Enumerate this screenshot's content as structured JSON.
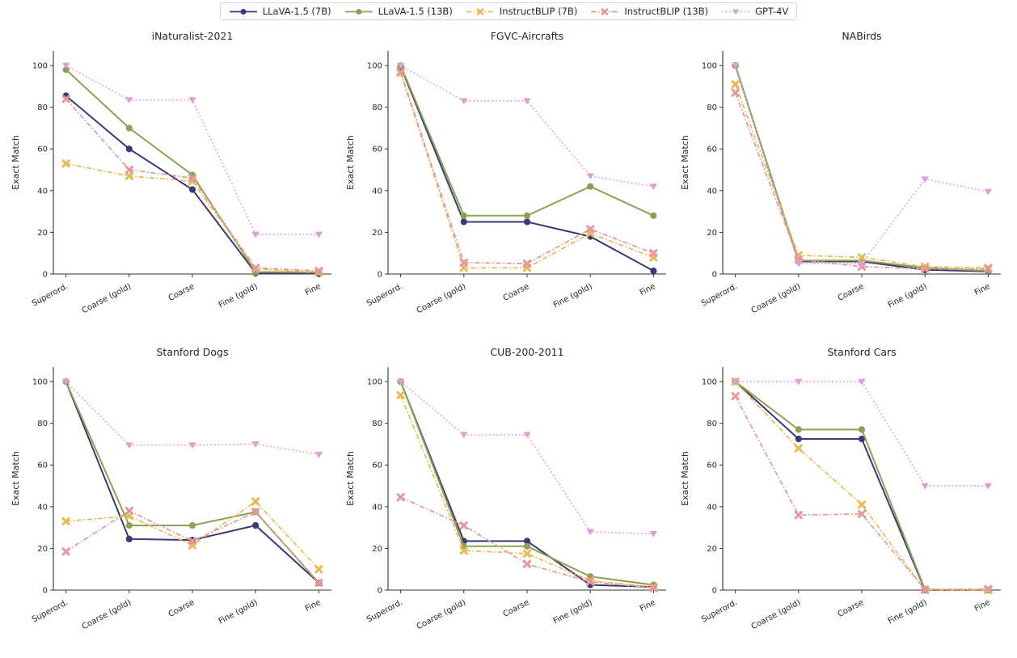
{
  "figure": {
    "ylabel": "Exact Match",
    "yticks": [
      0,
      20,
      40,
      60,
      80,
      100
    ],
    "ylim": [
      0,
      107
    ],
    "categories": [
      "Superord.",
      "Coarse (gold)",
      "Coarse",
      "Fine (gold)",
      "Fine"
    ]
  },
  "legend": {
    "entries": [
      {
        "label": "LLaVA-1.5 (7B)",
        "color": "#393b79",
        "linestyle": "solid",
        "marker": "circle"
      },
      {
        "label": "LLaVA-1.5 (13B)",
        "color": "#8ca252",
        "linestyle": "solid",
        "marker": "circle"
      },
      {
        "label": "InstructBLIP (7B)",
        "color": "#e7ba52",
        "linestyle": "dashdot",
        "marker": "x"
      },
      {
        "label": "InstructBLIP (13B)",
        "color": "#e7969c",
        "linestyle": "dashdot",
        "marker": "x"
      },
      {
        "label": "GPT-4V",
        "color": "#de9ed6",
        "linestyle": "dotted",
        "marker": "triangle-down"
      }
    ]
  },
  "chart_data": [
    {
      "type": "line",
      "title": "iNaturalist-2021",
      "xlabel": "",
      "ylabel": "Exact Match",
      "ylim": [
        0,
        107
      ],
      "grid": false,
      "categories": [
        "Superord.",
        "Coarse (gold)",
        "Coarse",
        "Fine (gold)",
        "Fine"
      ],
      "series": [
        {
          "name": "LLaVA-1.5 (7B)",
          "values": [
            85.5,
            60,
            40.5,
            0.6,
            0.2
          ]
        },
        {
          "name": "LLaVA-1.5 (13B)",
          "values": [
            98,
            70,
            47.5,
            1,
            0.8
          ]
        },
        {
          "name": "InstructBLIP (7B)",
          "values": [
            53,
            47,
            44.5,
            2.5,
            0.8
          ]
        },
        {
          "name": "InstructBLIP (13B)",
          "values": [
            84,
            50,
            46,
            3,
            1.5
          ]
        },
        {
          "name": "GPT-4V",
          "values": [
            100,
            83.5,
            83.5,
            19,
            19
          ]
        }
      ]
    },
    {
      "type": "line",
      "title": "FGVC-Aircrafts",
      "xlabel": "",
      "ylabel": "Exact Match",
      "ylim": [
        0,
        107
      ],
      "grid": false,
      "categories": [
        "Superord.",
        "Coarse (gold)",
        "Coarse",
        "Fine (gold)",
        "Fine"
      ],
      "series": [
        {
          "name": "LLaVA-1.5 (7B)",
          "values": [
            99.5,
            25,
            25,
            18,
            1.5
          ]
        },
        {
          "name": "LLaVA-1.5 (13B)",
          "values": [
            100,
            28,
            28,
            42,
            28
          ]
        },
        {
          "name": "InstructBLIP (7B)",
          "values": [
            96.5,
            3,
            3,
            19.5,
            8
          ]
        },
        {
          "name": "InstructBLIP (13B)",
          "values": [
            97,
            5.5,
            5,
            21.5,
            10
          ]
        },
        {
          "name": "GPT-4V",
          "values": [
            100,
            83,
            83,
            47,
            42
          ]
        }
      ]
    },
    {
      "type": "line",
      "title": "NABirds",
      "xlabel": "",
      "ylabel": "Exact Match",
      "ylim": [
        0,
        107
      ],
      "grid": false,
      "categories": [
        "Superord.",
        "Coarse (gold)",
        "Coarse",
        "Fine (gold)",
        "Fine"
      ],
      "series": [
        {
          "name": "LLaVA-1.5 (7B)",
          "values": [
            100,
            6,
            6,
            2,
            1.2
          ]
        },
        {
          "name": "LLaVA-1.5 (13B)",
          "values": [
            100,
            6.5,
            6.5,
            3,
            1.5
          ]
        },
        {
          "name": "InstructBLIP (7B)",
          "values": [
            91,
            9,
            8,
            3.5,
            3
          ]
        },
        {
          "name": "InstructBLIP (13B)",
          "values": [
            87,
            7,
            3.5,
            2.5,
            2.5
          ]
        },
        {
          "name": "GPT-4V",
          "values": [
            100,
            5,
            5,
            45.5,
            39.5
          ]
        }
      ]
    },
    {
      "type": "line",
      "title": "Stanford Dogs",
      "xlabel": "",
      "ylabel": "Exact Match",
      "ylim": [
        0,
        107
      ],
      "grid": false,
      "categories": [
        "Superord.",
        "Coarse (gold)",
        "Coarse",
        "Fine (gold)",
        "Fine"
      ],
      "series": [
        {
          "name": "LLaVA-1.5 (7B)",
          "values": [
            100,
            24.5,
            24,
            31,
            3.5
          ]
        },
        {
          "name": "LLaVA-1.5 (13B)",
          "values": [
            100,
            31,
            31,
            37.5,
            3.5
          ]
        },
        {
          "name": "InstructBLIP (7B)",
          "values": [
            33,
            35.5,
            21.5,
            42.5,
            10
          ]
        },
        {
          "name": "InstructBLIP (13B)",
          "values": [
            18.5,
            38,
            23.5,
            37.5,
            3.5
          ]
        },
        {
          "name": "GPT-4V",
          "values": [
            100,
            69.5,
            69.5,
            70,
            65
          ]
        }
      ]
    },
    {
      "type": "line",
      "title": "CUB-200-2011",
      "xlabel": "",
      "ylabel": "Exact Match",
      "ylim": [
        0,
        107
      ],
      "grid": false,
      "categories": [
        "Superord.",
        "Coarse (gold)",
        "Coarse",
        "Fine (gold)",
        "Fine"
      ],
      "series": [
        {
          "name": "LLaVA-1.5 (7B)",
          "values": [
            100,
            23.5,
            23.5,
            2.5,
            1.5
          ]
        },
        {
          "name": "LLaVA-1.5 (13B)",
          "values": [
            100,
            21,
            21,
            6.5,
            2.5
          ]
        },
        {
          "name": "InstructBLIP (7B)",
          "values": [
            93.5,
            19,
            17.5,
            4.5,
            1.5
          ]
        },
        {
          "name": "InstructBLIP (13B)",
          "values": [
            44.5,
            31,
            12.5,
            4,
            1
          ]
        },
        {
          "name": "GPT-4V",
          "values": [
            100,
            74.5,
            74.5,
            28,
            27
          ]
        }
      ]
    },
    {
      "type": "line",
      "title": "Stanford Cars",
      "xlabel": "",
      "ylabel": "Exact Match",
      "ylim": [
        0,
        107
      ],
      "grid": false,
      "categories": [
        "Superord.",
        "Coarse (gold)",
        "Coarse",
        "Fine (gold)",
        "Fine"
      ],
      "series": [
        {
          "name": "LLaVA-1.5 (7B)",
          "values": [
            100,
            72.5,
            72.5,
            0,
            0
          ]
        },
        {
          "name": "LLaVA-1.5 (13B)",
          "values": [
            100,
            77,
            77,
            0.3,
            0
          ]
        },
        {
          "name": "InstructBLIP (7B)",
          "values": [
            100,
            68,
            41,
            0,
            0
          ]
        },
        {
          "name": "InstructBLIP (13B)",
          "values": [
            93,
            36,
            36.5,
            0.3,
            0.5
          ]
        },
        {
          "name": "GPT-4V",
          "values": [
            100,
            100,
            100,
            50,
            50
          ]
        }
      ]
    }
  ]
}
